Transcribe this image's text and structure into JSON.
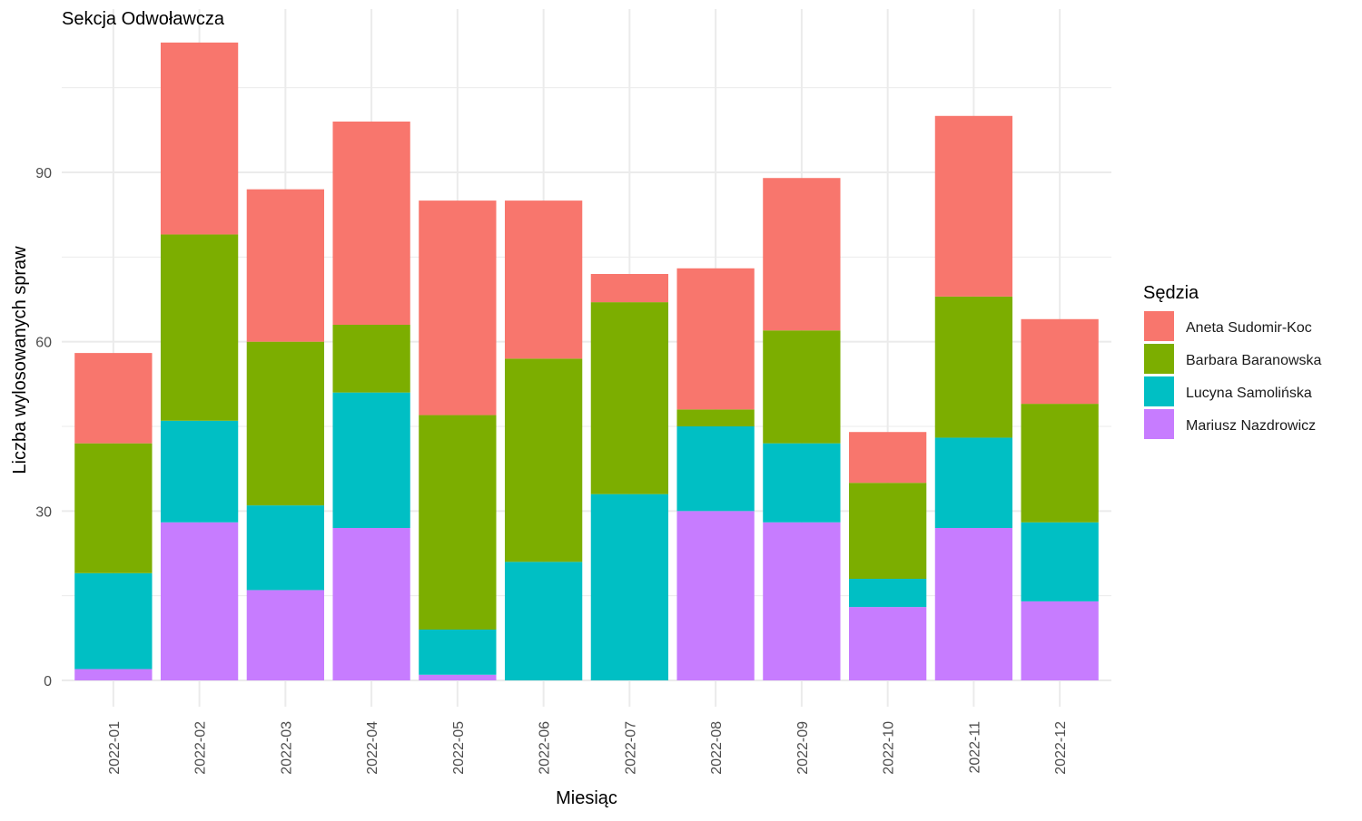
{
  "chart_data": {
    "type": "bar",
    "stacked": true,
    "title": "Sekcja Odwoławcza",
    "xlabel": "Miesiąc",
    "ylabel": "Liczba wylosowanych spraw",
    "ylim": [
      0,
      115
    ],
    "yticks": [
      0,
      30,
      60,
      90
    ],
    "grid": true,
    "legend_title": "Sędzia",
    "legend_position": "right",
    "categories": [
      "2022-01",
      "2022-02",
      "2022-03",
      "2022-04",
      "2022-05",
      "2022-06",
      "2022-07",
      "2022-08",
      "2022-09",
      "2022-10",
      "2022-11",
      "2022-12"
    ],
    "series": [
      {
        "name": "Mariusz Nazdrowicz",
        "color": "#C77CFF",
        "values": [
          2,
          28,
          16,
          27,
          1,
          0,
          0,
          30,
          28,
          13,
          27,
          14
        ]
      },
      {
        "name": "Lucyna Samolińska",
        "color": "#00BFC4",
        "values": [
          17,
          18,
          15,
          24,
          8,
          21,
          33,
          15,
          14,
          5,
          16,
          14
        ]
      },
      {
        "name": "Barbara Baranowska",
        "color": "#7CAE00",
        "values": [
          23,
          33,
          29,
          12,
          38,
          36,
          34,
          3,
          20,
          17,
          25,
          21
        ]
      },
      {
        "name": "Aneta Sudomir-Koc",
        "color": "#F8766D",
        "values": [
          16,
          34,
          27,
          36,
          38,
          28,
          5,
          25,
          27,
          9,
          32,
          15
        ]
      }
    ],
    "legend_order": [
      "Aneta Sudomir-Koc",
      "Barbara Baranowska",
      "Lucyna Samolińska",
      "Mariusz Nazdrowicz"
    ]
  }
}
